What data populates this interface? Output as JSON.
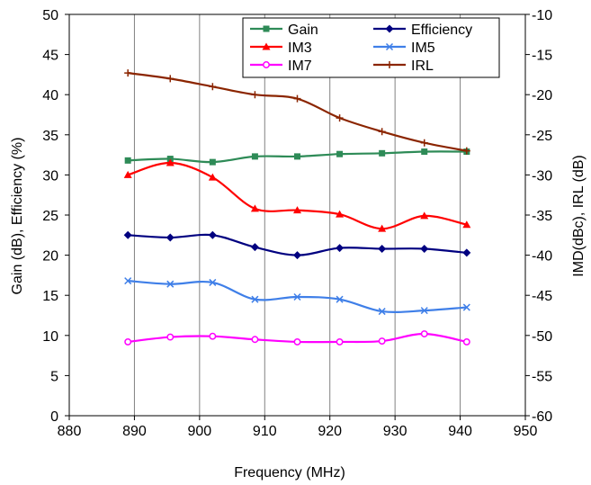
{
  "chart_data": {
    "type": "line",
    "xlabel": "Frequency (MHz)",
    "ylabel_left": "Gain (dB), Efficiency (%)",
    "ylabel_right": "IMD(dBc), IRL (dB)",
    "xlim": [
      880,
      950
    ],
    "ylim_left": [
      0,
      50
    ],
    "ylim_right": [
      -60,
      -10
    ],
    "x_ticks": [
      880,
      890,
      900,
      910,
      920,
      930,
      940,
      950
    ],
    "y_ticks_left": [
      0,
      5,
      10,
      15,
      20,
      25,
      30,
      35,
      40,
      45,
      50
    ],
    "y_ticks_right": [
      -60,
      -55,
      -50,
      -45,
      -40,
      -35,
      -30,
      -25,
      -20,
      -15,
      -10
    ],
    "grid": "vertical",
    "legend_position": "top-right",
    "series": [
      {
        "name": "Gain",
        "axis": "left",
        "color": "#2e8b57",
        "marker": "square",
        "x": [
          889,
          895.5,
          902,
          908.5,
          915,
          921.5,
          928,
          934.5,
          941
        ],
        "y": [
          31.8,
          32.0,
          31.6,
          32.3,
          32.3,
          32.6,
          32.7,
          32.9,
          32.9
        ]
      },
      {
        "name": "Efficiency",
        "axis": "left",
        "color": "#000080",
        "marker": "diamond",
        "x": [
          889,
          895.5,
          902,
          908.5,
          915,
          921.5,
          928,
          934.5,
          941
        ],
        "y": [
          22.5,
          22.2,
          22.5,
          21.0,
          20.0,
          20.9,
          20.8,
          20.8,
          20.3
        ]
      },
      {
        "name": "IM3",
        "axis": "right",
        "color": "#ff0000",
        "marker": "triangle",
        "x": [
          889,
          895.5,
          902,
          908.5,
          915,
          921.5,
          928,
          934.5,
          941
        ],
        "y": [
          -30.0,
          -28.5,
          -30.3,
          -34.2,
          -34.4,
          -34.9,
          -36.7,
          -35.1,
          -36.2
        ]
      },
      {
        "name": "IM5",
        "axis": "right",
        "color": "#3f7fe8",
        "marker": "x",
        "x": [
          889,
          895.5,
          902,
          908.5,
          915,
          921.5,
          928,
          934.5,
          941
        ],
        "y": [
          -43.2,
          -43.6,
          -43.4,
          -45.5,
          -45.2,
          -45.5,
          -47.0,
          -46.9,
          -46.5
        ]
      },
      {
        "name": "IM7",
        "axis": "right",
        "color": "#ff00ff",
        "marker": "circle",
        "x": [
          889,
          895.5,
          902,
          908.5,
          915,
          921.5,
          928,
          934.5,
          941
        ],
        "y": [
          -50.8,
          -50.2,
          -50.1,
          -50.5,
          -50.8,
          -50.8,
          -50.7,
          -49.8,
          -50.8
        ]
      },
      {
        "name": "IRL",
        "axis": "right",
        "color": "#8b2500",
        "marker": "plus",
        "x": [
          889,
          895.5,
          902,
          908.5,
          915,
          921.5,
          928,
          934.5,
          941
        ],
        "y": [
          -17.3,
          -18.0,
          -19.0,
          -20.0,
          -20.5,
          -22.9,
          -24.6,
          -26.0,
          -27.0
        ]
      }
    ]
  }
}
